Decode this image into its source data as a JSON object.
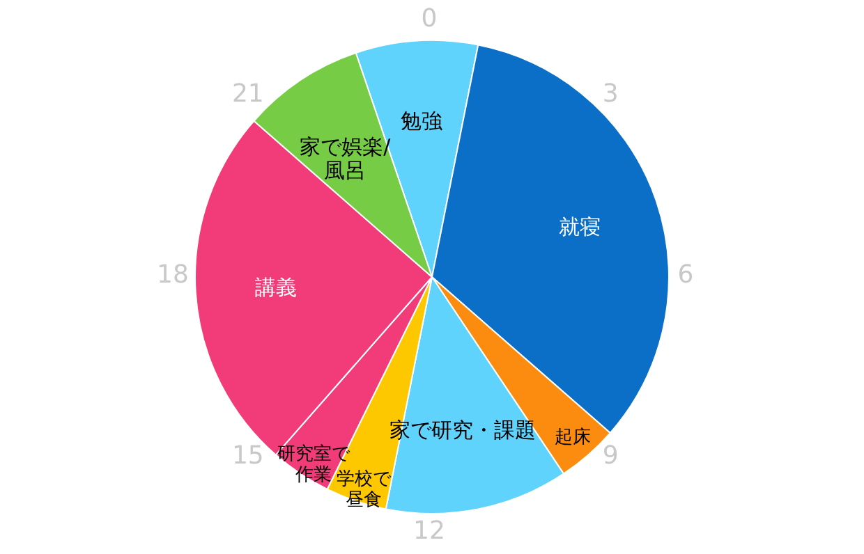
{
  "chart_data": {
    "type": "pie",
    "categories": [
      "勉強",
      "就寝",
      "起床",
      "家で研究・課題",
      "学校で昼食",
      "研究室で作業",
      "講義",
      "家で娯楽/風呂"
    ],
    "values": [
      8.33,
      33.33,
      4.17,
      12.5,
      4.17,
      4.17,
      25,
      8.33
    ],
    "colors": [
      "#5fd3fb",
      "#0b6fc8",
      "#fb8c0f",
      "#5fd3fb",
      "#fec800",
      "#f23c7a",
      "#f23c7a",
      "#76cc45"
    ],
    "annotations": [
      "0",
      "3",
      "6",
      "9",
      "12",
      "15",
      "18",
      "21"
    ]
  }
}
